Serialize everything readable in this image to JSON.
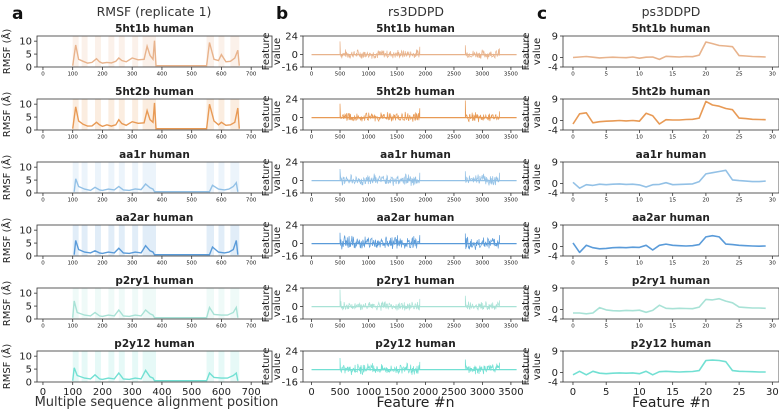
{
  "figure": {
    "panels": [
      {
        "letter": "a",
        "title": "RMSF (replicate 1)",
        "xlabel": "Multiple sequence alignment position"
      },
      {
        "letter": "b",
        "title": "rs3DDPD",
        "xlabel": "Feature #n"
      },
      {
        "letter": "c",
        "title": "ps3DDPD",
        "xlabel": "Feature #n"
      }
    ],
    "colors": {
      "5ht1b human": "#e8b38c",
      "5ht2b human": "#e89a55",
      "aa1r human": "#93c1e6",
      "aa2ar human": "#5a9bd9",
      "p2ry1 human": "#a8e2d6",
      "p2y12 human": "#72e0d3"
    }
  },
  "chart_data": [
    {
      "type": "line",
      "panel": "a",
      "title": "RMSF (replicate 1)",
      "xlabel": "Multiple sequence alignment position",
      "ylabel": "RMSF (Å)",
      "xlim": [
        -20,
        770
      ],
      "ylim": [
        0,
        12
      ],
      "xticks": [
        0,
        100,
        200,
        300,
        400,
        500,
        600,
        700
      ],
      "yticks": [
        0,
        5,
        10
      ],
      "proteins": [
        "5ht1b human",
        "5ht2b human",
        "aa1r human",
        "aa2ar human",
        "p2ry1 human",
        "p2y12 human"
      ],
      "series": [
        {
          "name": "5ht1b human",
          "x": [
            100,
            110,
            120,
            135,
            150,
            165,
            180,
            190,
            200,
            215,
            230,
            245,
            255,
            265,
            280,
            300,
            320,
            340,
            350,
            360,
            370,
            375,
            380,
            550,
            560,
            575,
            590,
            600,
            615,
            630,
            645,
            655,
            660
          ],
          "y": [
            0.5,
            8.5,
            3.0,
            2.2,
            1.5,
            1.8,
            3.2,
            2.0,
            1.5,
            1.8,
            1.6,
            2.2,
            3.5,
            2.5,
            2.0,
            3.5,
            2.8,
            3.0,
            8.0,
            4.5,
            3.0,
            10.2,
            0.5,
            0.5,
            9.5,
            3.0,
            2.5,
            4.8,
            2.0,
            2.2,
            3.5,
            6.5,
            0.5
          ]
        },
        {
          "name": "5ht2b human",
          "x": [
            100,
            110,
            120,
            135,
            150,
            165,
            180,
            190,
            200,
            215,
            230,
            245,
            255,
            265,
            280,
            300,
            320,
            340,
            350,
            360,
            370,
            375,
            380,
            550,
            560,
            575,
            590,
            600,
            615,
            630,
            645,
            655,
            660
          ],
          "y": [
            0.5,
            9.0,
            3.5,
            2.2,
            1.5,
            1.6,
            3.0,
            2.0,
            1.4,
            2.0,
            1.5,
            2.0,
            4.0,
            2.5,
            1.8,
            3.2,
            2.6,
            2.8,
            7.5,
            4.0,
            3.0,
            10.5,
            0.5,
            0.5,
            10.0,
            3.5,
            2.0,
            3.0,
            1.8,
            2.0,
            3.0,
            8.5,
            0.5
          ]
        },
        {
          "name": "aa1r human",
          "x": [
            105,
            110,
            120,
            140,
            160,
            175,
            190,
            200,
            220,
            240,
            255,
            270,
            290,
            310,
            330,
            345,
            360,
            370,
            375,
            560,
            570,
            590,
            610,
            625,
            640,
            650,
            655
          ],
          "y": [
            0.5,
            5.5,
            2.5,
            1.5,
            1.0,
            2.2,
            1.2,
            1.0,
            1.5,
            1.2,
            2.5,
            1.2,
            1.0,
            1.6,
            1.3,
            3.5,
            2.0,
            1.5,
            0.5,
            0.5,
            3.0,
            1.5,
            1.2,
            1.5,
            2.5,
            4.0,
            0.5
          ]
        },
        {
          "name": "aa2ar human",
          "x": [
            105,
            110,
            120,
            140,
            160,
            175,
            190,
            200,
            220,
            240,
            255,
            270,
            290,
            310,
            330,
            345,
            360,
            370,
            375,
            560,
            570,
            590,
            610,
            625,
            640,
            650,
            655
          ],
          "y": [
            0.5,
            6.0,
            2.5,
            1.5,
            1.2,
            2.0,
            1.2,
            1.0,
            1.5,
            1.2,
            3.0,
            1.2,
            1.0,
            1.5,
            1.2,
            4.0,
            2.0,
            1.5,
            0.5,
            0.5,
            3.5,
            1.5,
            1.2,
            1.5,
            2.5,
            6.0,
            0.5
          ]
        },
        {
          "name": "p2ry1 human",
          "x": [
            100,
            105,
            115,
            140,
            160,
            175,
            190,
            200,
            220,
            240,
            255,
            270,
            290,
            310,
            330,
            345,
            360,
            370,
            375,
            550,
            560,
            575,
            600,
            620,
            640,
            650,
            655
          ],
          "y": [
            0.5,
            7.0,
            2.5,
            1.5,
            1.2,
            2.5,
            1.2,
            1.0,
            1.5,
            1.2,
            3.5,
            1.2,
            1.0,
            1.5,
            1.2,
            3.5,
            2.0,
            1.5,
            0.5,
            0.5,
            4.5,
            1.8,
            1.5,
            1.5,
            2.5,
            4.5,
            0.5
          ]
        },
        {
          "name": "p2y12 human",
          "x": [
            100,
            105,
            115,
            140,
            160,
            175,
            190,
            200,
            220,
            240,
            255,
            270,
            290,
            310,
            330,
            345,
            360,
            370,
            375,
            550,
            560,
            575,
            600,
            620,
            640,
            650,
            655
          ],
          "y": [
            0.5,
            5.5,
            2.5,
            1.5,
            1.2,
            2.8,
            1.2,
            1.0,
            1.5,
            1.2,
            3.5,
            1.2,
            1.0,
            1.5,
            1.2,
            4.5,
            2.0,
            1.5,
            0.5,
            0.5,
            3.5,
            1.8,
            1.5,
            1.5,
            2.5,
            3.5,
            0.5
          ]
        }
      ]
    },
    {
      "type": "line",
      "panel": "b",
      "title": "rs3DDPD",
      "xlabel": "Feature #n",
      "ylabel": "Feature value",
      "xlim": [
        -150,
        3800
      ],
      "ylim": [
        -16,
        24
      ],
      "xticks": [
        0,
        500,
        1000,
        1500,
        2000,
        2500,
        3000,
        3500
      ],
      "yticks": [
        -16,
        0,
        24
      ],
      "baseline": {
        "x_start": 0,
        "x_end": 3600,
        "y": 0
      },
      "series": [
        {
          "name": "5ht1b human",
          "segments": [
            {
              "x_start": 500,
              "x_end": 1900,
              "amplitude": 7,
              "spike_start": 17,
              "spike_end": 10
            },
            {
              "x_start": 2700,
              "x_end": 3300,
              "amplitude": 7,
              "spike_start": 12,
              "spike_end": 8
            }
          ]
        },
        {
          "name": "5ht2b human",
          "segments": [
            {
              "x_start": 500,
              "x_end": 1900,
              "amplitude": 7,
              "spike_start": 18,
              "spike_end": 12
            },
            {
              "x_start": 2700,
              "x_end": 3300,
              "amplitude": 7,
              "spike_start": 22,
              "spike_end": 8
            }
          ]
        },
        {
          "name": "aa1r human",
          "segments": [
            {
              "x_start": 500,
              "x_end": 1900,
              "amplitude": 9,
              "spike_start": 15,
              "spike_end": 10
            },
            {
              "x_start": 2700,
              "x_end": 3300,
              "amplitude": 9,
              "spike_start": 12,
              "spike_end": 10
            }
          ]
        },
        {
          "name": "aa2ar human",
          "segments": [
            {
              "x_start": 500,
              "x_end": 1900,
              "amplitude": 10,
              "spike_start": 14,
              "spike_end": 11
            },
            {
              "x_start": 2700,
              "x_end": 3300,
              "amplitude": 10,
              "spike_start": 13,
              "spike_end": 11
            }
          ]
        },
        {
          "name": "p2ry1 human",
          "segments": [
            {
              "x_start": 500,
              "x_end": 1900,
              "amplitude": 7,
              "spike_start": 22,
              "spike_end": 10
            },
            {
              "x_start": 2700,
              "x_end": 3300,
              "amplitude": 7,
              "spike_start": 14,
              "spike_end": 8
            }
          ]
        },
        {
          "name": "p2y12 human",
          "segments": [
            {
              "x_start": 500,
              "x_end": 1900,
              "amplitude": 8,
              "spike_start": 15,
              "spike_end": 10
            },
            {
              "x_start": 2700,
              "x_end": 3300,
              "amplitude": 8,
              "spike_start": 13,
              "spike_end": 9
            }
          ]
        }
      ]
    },
    {
      "type": "line",
      "panel": "c",
      "title": "ps3DDPD",
      "xlabel": "Feature #n",
      "ylabel": "Feature value",
      "xlim": [
        -1.5,
        31
      ],
      "ylim": [
        -4,
        9
      ],
      "xticks": [
        0,
        5,
        10,
        15,
        20,
        25,
        30
      ],
      "yticks": [
        -4,
        0,
        9
      ],
      "series": [
        {
          "name": "5ht1b human",
          "x": [
            0,
            1,
            2,
            3,
            4,
            5,
            6,
            7,
            8,
            9,
            10,
            11,
            12,
            13,
            14,
            15,
            16,
            17,
            18,
            19,
            20,
            21,
            22,
            23,
            24,
            25,
            26,
            27,
            28,
            29
          ],
          "y": [
            0,
            0.2,
            0.4,
            0.1,
            -0.2,
            0,
            0.1,
            0,
            -0.1,
            0.2,
            -0.3,
            0.1,
            0.2,
            -0.8,
            0.5,
            0.3,
            0.2,
            0.4,
            0.3,
            1.0,
            6.5,
            5.8,
            5.0,
            4.8,
            4.5,
            0.8,
            0.6,
            0.4,
            0.3,
            0.2
          ]
        },
        {
          "name": "5ht2b human",
          "x": [
            0,
            1,
            2,
            3,
            4,
            5,
            6,
            7,
            8,
            9,
            10,
            11,
            12,
            13,
            14,
            15,
            16,
            17,
            18,
            19,
            20,
            21,
            22,
            23,
            24,
            25,
            26,
            27,
            28,
            29
          ],
          "y": [
            -1.5,
            2.8,
            3.2,
            -1.0,
            -0.5,
            -0.3,
            -0.2,
            0,
            -0.2,
            0,
            -0.3,
            3.0,
            2.0,
            -1.5,
            0.3,
            0.2,
            0.2,
            0.4,
            0.5,
            1.0,
            8.0,
            6.5,
            6.0,
            5.0,
            4.5,
            1.0,
            0.8,
            0.5,
            0.4,
            0.3
          ]
        },
        {
          "name": "aa1r human",
          "x": [
            0,
            1,
            2,
            3,
            4,
            5,
            6,
            7,
            8,
            9,
            10,
            11,
            12,
            13,
            14,
            15,
            16,
            17,
            18,
            19,
            20,
            21,
            22,
            23,
            24,
            25,
            26,
            27,
            28,
            29
          ],
          "y": [
            0.5,
            -2.0,
            -0.5,
            -0.8,
            -0.3,
            -0.5,
            -0.3,
            -0.2,
            -0.4,
            -0.3,
            -0.6,
            -1.5,
            -0.5,
            -0.4,
            0.3,
            -0.5,
            -0.4,
            -0.3,
            -0.2,
            0.8,
            4.0,
            4.5,
            5.0,
            5.5,
            1.5,
            1.2,
            1.0,
            0.8,
            0.8,
            1.0
          ]
        },
        {
          "name": "aa2ar human",
          "x": [
            0,
            1,
            2,
            3,
            4,
            5,
            6,
            7,
            8,
            9,
            10,
            11,
            12,
            13,
            14,
            15,
            16,
            17,
            18,
            19,
            20,
            21,
            22,
            23,
            24,
            25,
            26,
            27,
            28,
            29
          ],
          "y": [
            1.5,
            -2.5,
            0.5,
            -0.5,
            -1.0,
            -0.8,
            -0.5,
            -0.4,
            -0.5,
            -0.3,
            -0.4,
            0.5,
            -1.5,
            0.5,
            1.0,
            0.5,
            0.3,
            0.2,
            0.3,
            0.8,
            4.0,
            4.5,
            4.0,
            1.0,
            0.8,
            0.5,
            0.3,
            0.2,
            0.1,
            0.2
          ]
        },
        {
          "name": "p2ry1 human",
          "x": [
            0,
            1,
            2,
            3,
            4,
            5,
            6,
            7,
            8,
            9,
            10,
            11,
            12,
            13,
            14,
            15,
            16,
            17,
            18,
            19,
            20,
            21,
            22,
            23,
            24,
            25,
            26,
            27,
            28,
            29
          ],
          "y": [
            -1.5,
            -1.5,
            -1.8,
            -1.5,
            0.8,
            -0.2,
            -0.5,
            -0.6,
            -0.4,
            -0.5,
            -0.3,
            -1.2,
            -0.4,
            1.8,
            0.5,
            0.3,
            0.5,
            0.4,
            0.3,
            1.0,
            4.2,
            4.0,
            4.5,
            3.5,
            2.8,
            1.0,
            0.8,
            0.6,
            0.6,
            0.5
          ]
        },
        {
          "name": "p2y12 human",
          "x": [
            0,
            1,
            2,
            3,
            4,
            5,
            6,
            7,
            8,
            9,
            10,
            11,
            12,
            13,
            14,
            15,
            16,
            17,
            18,
            19,
            20,
            21,
            22,
            23,
            24,
            25,
            26,
            27,
            28,
            29
          ],
          "y": [
            -1.0,
            0.5,
            -1.0,
            0.5,
            -0.3,
            -0.5,
            -0.3,
            -0.2,
            -0.3,
            -0.2,
            -0.5,
            0.5,
            -1.0,
            0.3,
            0.5,
            0.3,
            0.2,
            0.3,
            0.4,
            0.8,
            5.0,
            5.2,
            5.0,
            4.5,
            0.8,
            0.5,
            0.4,
            0.3,
            0.2,
            0.2
          ]
        }
      ]
    }
  ]
}
